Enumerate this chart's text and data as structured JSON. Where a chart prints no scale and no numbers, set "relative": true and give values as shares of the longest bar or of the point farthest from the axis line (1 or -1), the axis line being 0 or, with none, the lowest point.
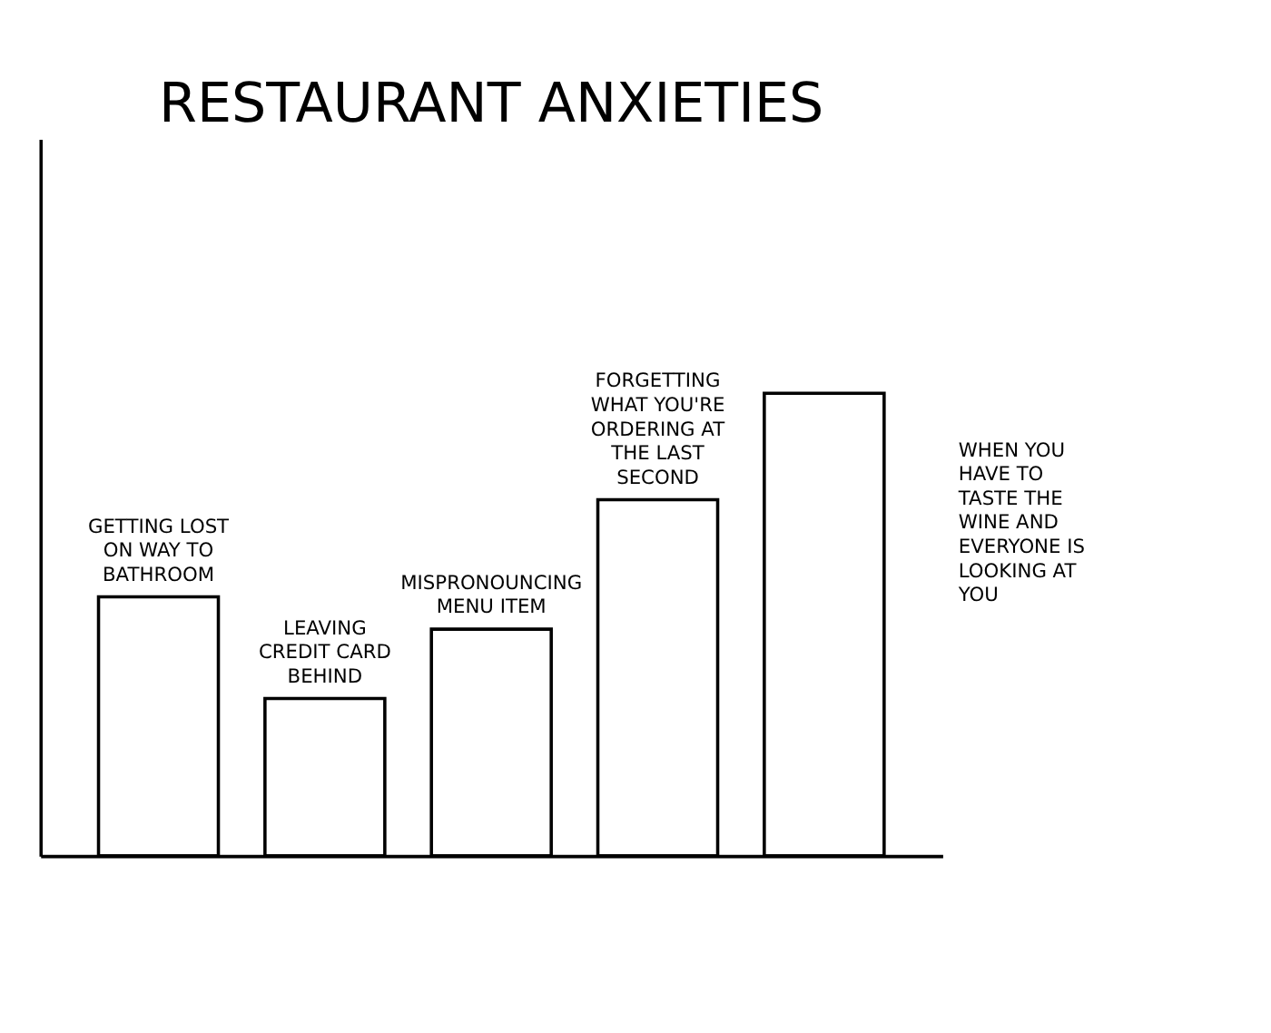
{
  "chart_data": {
    "type": "bar",
    "title": "RESTAURANT ANXIETIES",
    "relative": true,
    "categories": [
      "GETTING LOST ON WAY TO BATHROOM",
      "LEAVING CREDIT CARD BEHIND",
      "MISPRONOUNCING MENU ITEM",
      "FORGETTING WHAT YOU'RE ORDERING AT THE LAST SECOND",
      null
    ],
    "values": [
      0.56,
      0.34,
      0.49,
      0.77,
      1.0
    ],
    "annotations": [
      "WHEN YOU HAVE TO TASTE THE WINE AND EVERYONE IS LOOKING AT YOU"
    ],
    "color": "#ffffff",
    "grid": false,
    "tick_labels": false
  }
}
